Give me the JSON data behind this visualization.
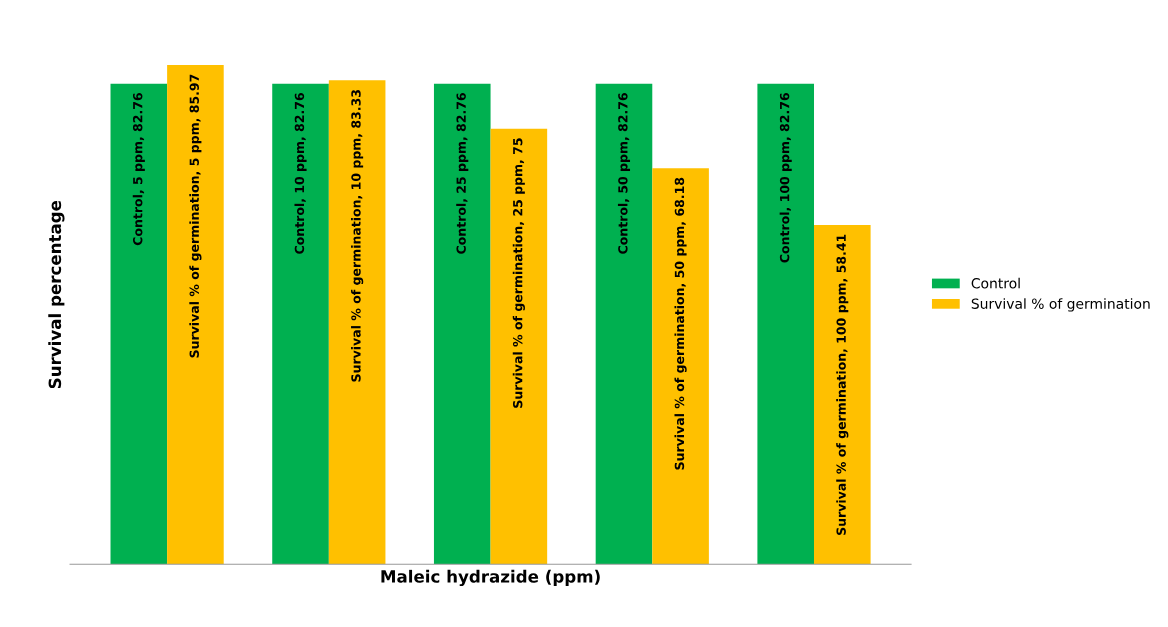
{
  "chart_data": {
    "type": "bar",
    "xlabel": "Maleic hydrazide (ppm)",
    "ylabel": "Survival percentage",
    "categories": [
      null,
      null,
      null,
      null,
      null
    ],
    "series": [
      {
        "name": "Control",
        "color": "#00b050",
        "values": [
          82.76,
          82.76,
          82.76,
          82.76,
          82.76
        ],
        "value_labels": [
          "Control, 5 ppm, 82.76",
          "Control, 10 ppm, 82.76",
          "Control, 25 ppm, 82.76",
          "Control, 50 ppm, 82.76",
          "Control, 100 ppm, 82.76"
        ]
      },
      {
        "name": "Survival % of germination",
        "color": "#ffc000",
        "values": [
          85.97,
          83.33,
          75,
          68.18,
          58.41
        ],
        "value_labels": [
          "Survival % of germination, 5 ppm, 85.97",
          "Survival % of germination, 10 ppm, 83.33",
          "Survival % of germination, 25 ppm, 75",
          "Survival % of germination, 50 ppm, 68.18",
          "Survival % of germination, 100 ppm, 58.41"
        ]
      }
    ],
    "legend": "right",
    "tick_labels": false
  }
}
